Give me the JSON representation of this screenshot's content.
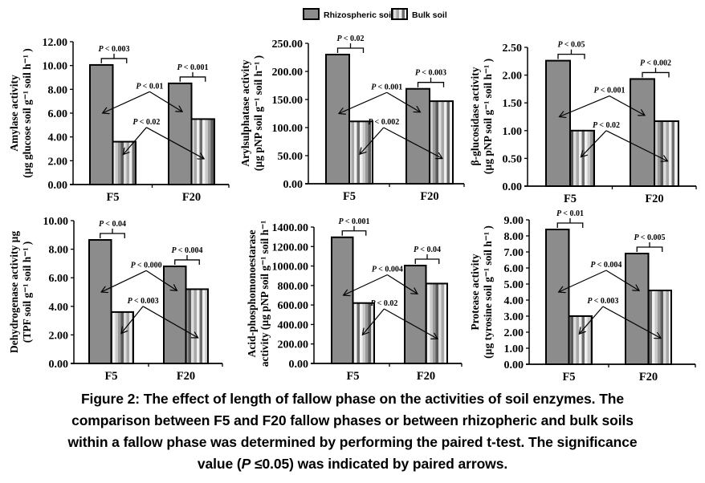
{
  "legend": {
    "items": [
      {
        "label": "Rhizospheric soil",
        "style": "solid",
        "color": "#8c8c8c"
      },
      {
        "label": "Bulk soil",
        "style": "striped",
        "color": "#b4b4b4"
      }
    ]
  },
  "colors": {
    "rhizo_fill": "#8c8c8c",
    "bulk_stripes": [
      "#f0f0f0",
      "#c8c8c8",
      "#9a9a9a",
      "#5a5a5a",
      "#dcdcdc",
      "#a8a8a8",
      "#efefef",
      "#6e6e6e"
    ],
    "outline": "#000000"
  },
  "chart_data": [
    {
      "type": "bar",
      "id": "amylase",
      "ylabel_line1": "Amylase activity",
      "ylabel_line2": "(µg glucose soil g⁻¹ soil h⁻¹ )",
      "categories": [
        "F5",
        "F20"
      ],
      "series": [
        {
          "name": "Rhizospheric soil",
          "values": [
            10.05,
            8.5
          ]
        },
        {
          "name": "Bulk soil",
          "values": [
            3.6,
            5.5
          ]
        }
      ],
      "ylim": [
        0,
        12
      ],
      "yticks": [
        "0.00",
        "2.00",
        "4.00",
        "6.00",
        "8.00",
        "10.00",
        "12.00"
      ],
      "annotations": {
        "bracket_F5": "P < 0.003",
        "bracket_F20": "P < 0.001",
        "rhizo_pair": "P < 0.01",
        "bulk_pair": "P < 0.02"
      }
    },
    {
      "type": "bar",
      "id": "arylsulphatase",
      "ylabel_line1": "Arylsulphatase activity",
      "ylabel_line2": "(µg pNP soil g⁻¹ soil h⁻¹ )",
      "categories": [
        "F5",
        "F20"
      ],
      "series": [
        {
          "name": "Rhizospheric soil",
          "values": [
            230,
            169
          ]
        },
        {
          "name": "Bulk soil",
          "values": [
            111,
            147
          ]
        }
      ],
      "ylim": [
        0,
        250
      ],
      "yticks": [
        "0.00",
        "50.00",
        "100.00",
        "150.00",
        "200.00",
        "250.00"
      ],
      "annotations": {
        "bracket_F5": "P < 0.02",
        "bracket_F20": "P < 0.003",
        "rhizo_pair": "P < 0.001",
        "bulk_pair": "P < 0.002"
      }
    },
    {
      "type": "bar",
      "id": "beta-glucosidase",
      "ylabel_line1": "β-glucosidase activity",
      "ylabel_line2": "(µg pNP soil g⁻¹ soil h⁻¹ )",
      "categories": [
        "F5",
        "F20"
      ],
      "series": [
        {
          "name": "Rhizospheric soil",
          "values": [
            2.26,
            1.93
          ]
        },
        {
          "name": "Bulk soil",
          "values": [
            1.0,
            1.17
          ]
        }
      ],
      "ylim": [
        0,
        2.5
      ],
      "yticks": [
        "0.00",
        "0.50",
        "1.00",
        "1.50",
        "2.00",
        "2.50"
      ],
      "annotations": {
        "bracket_F5": "P < 0.05",
        "bracket_F20": "P < 0.002",
        "rhizo_pair": "P < 0.001",
        "bulk_pair": "P < 0.02"
      }
    },
    {
      "type": "bar",
      "id": "dehydrogenase",
      "ylabel_line1": "Dehydrogenase activity µg",
      "ylabel_line2": "(TPF soil g⁻¹ soil h⁻¹ )",
      "categories": [
        "F5",
        "F20"
      ],
      "series": [
        {
          "name": "Rhizospheric soil",
          "values": [
            8.65,
            6.8
          ]
        },
        {
          "name": "Bulk soil",
          "values": [
            3.6,
            5.2
          ]
        }
      ],
      "ylim": [
        0,
        10
      ],
      "yticks": [
        "0.00",
        "2.00",
        "4.00",
        "6.00",
        "8.00",
        "10.00"
      ],
      "annotations": {
        "bracket_F5": "P < 0.04",
        "bracket_F20": "P < 0.004",
        "rhizo_pair": "P < 0.000",
        "bulk_pair": "P < 0.003"
      }
    },
    {
      "type": "bar",
      "id": "acid-phosphomonoestarase",
      "ylabel_line1": "Acid-phosphomonoestarase",
      "ylabel_line2": "activity (µg pNP soil g⁻¹ soil h⁻¹",
      "categories": [
        "F5",
        "F20"
      ],
      "series": [
        {
          "name": "Rhizospheric soil",
          "values": [
            1295,
            1005
          ]
        },
        {
          "name": "Bulk soil",
          "values": [
            620,
            820
          ]
        }
      ],
      "ylim": [
        0,
        1400
      ],
      "yticks": [
        "0.00",
        "200.00",
        "400.00",
        "600.00",
        "800.00",
        "1000.00",
        "1200.00",
        "1400.00"
      ],
      "annotations": {
        "bracket_F5": "P < 0.001",
        "bracket_F20": "P < 0.04",
        "rhizo_pair": "P < 0.004",
        "bulk_pair": "P < 0.02"
      }
    },
    {
      "type": "bar",
      "id": "protease",
      "ylabel_line1": "Protease activity",
      "ylabel_line2": "(µg tyrosine soil g⁻¹ soil h⁻¹ )",
      "categories": [
        "F5",
        "F20"
      ],
      "series": [
        {
          "name": "Rhizospheric soil",
          "values": [
            8.4,
            6.9
          ]
        },
        {
          "name": "Bulk soil",
          "values": [
            3.0,
            4.6
          ]
        }
      ],
      "ylim": [
        0,
        9
      ],
      "yticks": [
        "0.00",
        "1.00",
        "2.00",
        "3.00",
        "4.00",
        "5.00",
        "6.00",
        "7.00",
        "8.00",
        "9.00"
      ],
      "annotations": {
        "bracket_F5": "P < 0.01",
        "bracket_F20": "P < 0.005",
        "rhizo_pair": "P < 0.004",
        "bulk_pair": "P < 0.003"
      }
    }
  ],
  "caption": {
    "line1": "Figure 2: The effect of length of fallow phase on the activities of soil enzymes. The",
    "line2": "comparison between F5 and F20 fallow phases or between rhizopheric and bulk soils",
    "line3": "within a fallow phase was determined by performing the paired t-test. The significance",
    "line4_pre": "value (",
    "line4_p": "P",
    "line4_post": " ≤0.05) was indicated by paired arrows."
  }
}
